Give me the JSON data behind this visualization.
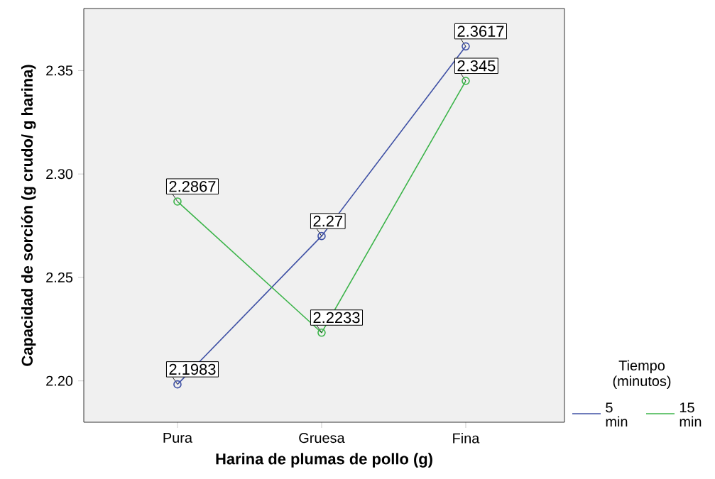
{
  "chart_data": {
    "type": "line",
    "xlabel": "Harina de plumas de pollo (g)",
    "ylabel": "Capacidad de sorción (g crudo/ g harina)",
    "legend_title": "Tiempo (minutos)",
    "categories": [
      "Pura",
      "Gruesa",
      "Fina"
    ],
    "series": [
      {
        "name": "5 min",
        "color": "#3f51a5",
        "values": [
          2.1983,
          2.27,
          2.3617
        ]
      },
      {
        "name": "15 min",
        "color": "#3cb44a",
        "values": [
          2.2867,
          2.2233,
          2.345
        ]
      }
    ],
    "ylim": [
      2.18,
      2.38
    ],
    "yticks": [
      {
        "value": 2.2,
        "label": "2.20"
      },
      {
        "value": 2.25,
        "label": "2.25"
      },
      {
        "value": 2.3,
        "label": "2.30"
      },
      {
        "value": 2.35,
        "label": "2.35"
      }
    ],
    "grid": false,
    "legend": "right",
    "marker": "circle",
    "line_style": "solid",
    "data_labels": true
  }
}
